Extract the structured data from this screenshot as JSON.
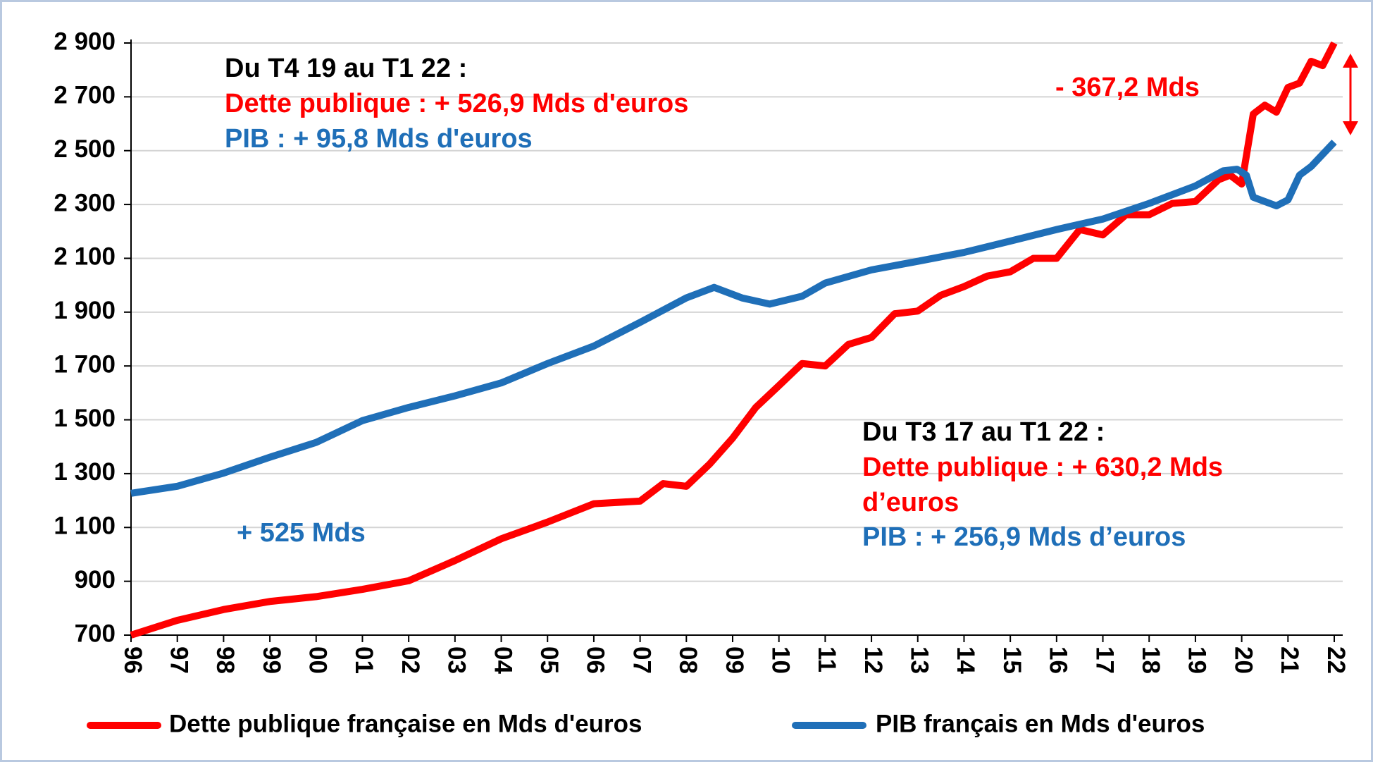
{
  "chart_data": {
    "type": "line",
    "xlim": [
      1996,
      2022
    ],
    "xticks": [
      {
        "value": 1996,
        "label": "96"
      },
      {
        "value": 1997,
        "label": "97"
      },
      {
        "value": 1998,
        "label": "98"
      },
      {
        "value": 1999,
        "label": "99"
      },
      {
        "value": 2000,
        "label": "00"
      },
      {
        "value": 2001,
        "label": "01"
      },
      {
        "value": 2002,
        "label": "02"
      },
      {
        "value": 2003,
        "label": "03"
      },
      {
        "value": 2004,
        "label": "04"
      },
      {
        "value": 2005,
        "label": "05"
      },
      {
        "value": 2006,
        "label": "06"
      },
      {
        "value": 2007,
        "label": "07"
      },
      {
        "value": 2008,
        "label": "08"
      },
      {
        "value": 2009,
        "label": "09"
      },
      {
        "value": 2010,
        "label": "10"
      },
      {
        "value": 2011,
        "label": "11"
      },
      {
        "value": 2012,
        "label": "12"
      },
      {
        "value": 2013,
        "label": "13"
      },
      {
        "value": 2014,
        "label": "14"
      },
      {
        "value": 2015,
        "label": "15"
      },
      {
        "value": 2016,
        "label": "16"
      },
      {
        "value": 2017,
        "label": "17"
      },
      {
        "value": 2018,
        "label": "18"
      },
      {
        "value": 2019,
        "label": "19"
      },
      {
        "value": 2020,
        "label": "20"
      },
      {
        "value": 2021,
        "label": "21"
      },
      {
        "value": 2022,
        "label": "22"
      }
    ],
    "ylim": [
      700,
      2900
    ],
    "yticks": [
      700,
      900,
      {
        "value": 1100,
        "label": "1 100"
      },
      {
        "value": 1300,
        "label": "1 300"
      },
      {
        "value": 1500,
        "label": "1 500"
      },
      {
        "value": 1700,
        "label": "1 700"
      },
      {
        "value": 1900,
        "label": "1 900"
      },
      {
        "value": 2100,
        "label": "2 100"
      },
      {
        "value": 2300,
        "label": "2 300"
      },
      {
        "value": 2500,
        "label": "2 500"
      },
      {
        "value": 2700,
        "label": "2 700"
      },
      {
        "value": 2900,
        "label": "2 900"
      }
    ],
    "grid": true,
    "series": [
      {
        "name": "Dette publique française en Mds d'euros",
        "color": "#ff0000",
        "x": [
          1996,
          1997,
          1998,
          1999,
          2000,
          2001,
          2002,
          2003,
          2004,
          2005,
          2006,
          2007,
          2007.5,
          2008,
          2008.5,
          2009,
          2009.5,
          2010,
          2010.5,
          2011,
          2011.5,
          2012,
          2012.5,
          2013,
          2013.5,
          2014,
          2014.5,
          2015,
          2015.5,
          2016,
          2016.5,
          2017,
          2017.5,
          2018,
          2018.5,
          2019,
          2019.5,
          2019.75,
          2020,
          2020.25,
          2020.5,
          2020.75,
          2021,
          2021.25,
          2021.5,
          2021.75,
          2022
        ],
        "values": [
          700,
          755,
          795,
          825,
          843,
          870,
          902,
          977,
          1058,
          1120,
          1188,
          1198,
          1263,
          1253,
          1335,
          1432,
          1546,
          1627,
          1709,
          1700,
          1780,
          1806,
          1894,
          1904,
          1963,
          1995,
          2034,
          2050,
          2100,
          2100,
          2207,
          2187,
          2262,
          2262,
          2304,
          2311,
          2392,
          2409,
          2376,
          2636,
          2669,
          2643,
          2735,
          2751,
          2832,
          2816,
          2900
        ]
      },
      {
        "name": "PIB français en Mds d'euros",
        "color": "#1f6fb8",
        "x": [
          1996,
          1997,
          1998,
          1999,
          2000,
          2001,
          2002,
          2003,
          2004,
          2005,
          2006,
          2007,
          2008,
          2008.6,
          2009.2,
          2009.8,
          2010.5,
          2011,
          2012,
          2013,
          2014,
          2015,
          2016,
          2017,
          2018,
          2019,
          2019.6,
          2019.9,
          2020.1,
          2020.25,
          2020.75,
          2021,
          2021.25,
          2021.5,
          2022
        ],
        "values": [
          1227,
          1253,
          1302,
          1361,
          1416,
          1497,
          1546,
          1589,
          1637,
          1709,
          1774,
          1862,
          1953,
          1992,
          1953,
          1930,
          1959,
          2008,
          2057,
          2089,
          2122,
          2164,
          2207,
          2246,
          2304,
          2369,
          2425,
          2431,
          2409,
          2327,
          2295,
          2317,
          2409,
          2441,
          2532
        ]
      }
    ],
    "annotations": [
      {
        "text": "Du T4 19 au T1 22 :",
        "color": "#000000"
      },
      {
        "text": "Dette publique : + 526,9 Mds d'euros",
        "color": "#ff0000"
      },
      {
        "text": "PIB  : + 95,8 Mds d'euros",
        "color": "#1f6fb8"
      },
      {
        "text": "- 367,2 Mds",
        "color": "#ff0000"
      },
      {
        "text": "+ 525 Mds",
        "color": "#1f6fb8"
      },
      {
        "text": "Du T3 17 au T1 22 :",
        "color": "#000000"
      },
      {
        "text": "Dette publique : + 630,2 Mds",
        "color": "#ff0000"
      },
      {
        "text": "d’euros",
        "color": "#ff0000"
      },
      {
        "text": "PIB  : + 256,9 Mds d’euros",
        "color": "#1f6fb8"
      }
    ]
  }
}
